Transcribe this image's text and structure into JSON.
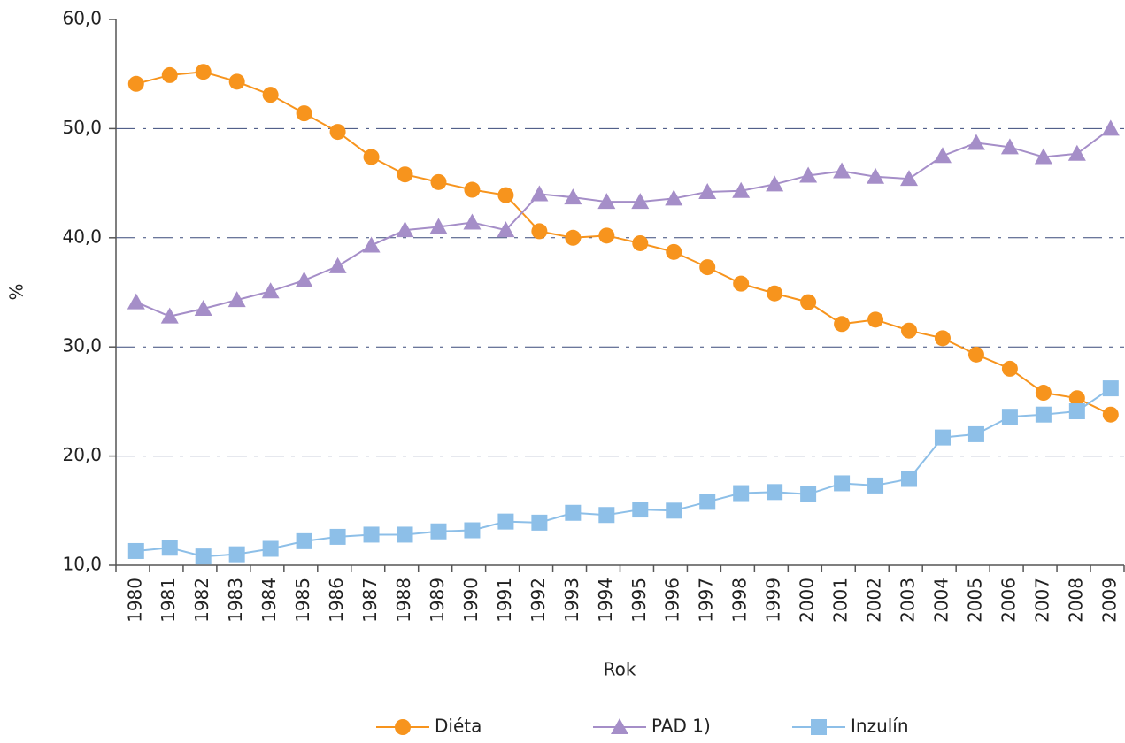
{
  "chart_data": {
    "type": "line",
    "x_label": "Rok",
    "y_label": "%",
    "categories": [
      "1980",
      "1981",
      "1982",
      "1983",
      "1984",
      "1985",
      "1986",
      "1987",
      "1988",
      "1989",
      "1990",
      "1991",
      "1992",
      "1993",
      "1994",
      "1995",
      "1996",
      "1997",
      "1998",
      "1999",
      "2000",
      "2001",
      "2002",
      "2003",
      "2004",
      "2005",
      "2006",
      "2007",
      "2008",
      "2009"
    ],
    "series": [
      {
        "name": "Diéta",
        "color": "#f7941d",
        "marker": "circle",
        "values": [
          54.1,
          54.9,
          55.2,
          54.3,
          53.1,
          51.4,
          49.7,
          47.4,
          45.8,
          45.1,
          44.4,
          43.9,
          40.6,
          40.0,
          40.2,
          39.5,
          38.7,
          37.3,
          35.8,
          34.9,
          34.1,
          32.1,
          32.5,
          31.5,
          30.8,
          29.3,
          28.0,
          25.8,
          25.3,
          23.8
        ]
      },
      {
        "name": "PAD 1)",
        "color": "#a58ec8",
        "marker": "triangle",
        "values": [
          34.1,
          32.8,
          33.5,
          34.3,
          35.1,
          36.1,
          37.4,
          39.3,
          40.7,
          41.0,
          41.4,
          40.7,
          44.0,
          43.7,
          43.3,
          43.3,
          43.6,
          44.2,
          44.3,
          44.9,
          45.7,
          46.1,
          45.6,
          45.4,
          47.5,
          48.7,
          48.3,
          47.4,
          47.7,
          50.0
        ]
      },
      {
        "name": "Inzulín",
        "color": "#8dbfe8",
        "marker": "square",
        "values": [
          11.3,
          11.6,
          10.8,
          11.0,
          11.5,
          12.2,
          12.6,
          12.8,
          12.8,
          13.1,
          13.2,
          14.0,
          13.9,
          14.8,
          14.6,
          15.1,
          15.0,
          15.8,
          16.6,
          16.7,
          16.5,
          17.5,
          17.3,
          17.9,
          21.7,
          22.0,
          23.6,
          23.8,
          24.1,
          26.2
        ]
      }
    ],
    "ylim": [
      10,
      60
    ],
    "yticks": [
      {
        "value": 10,
        "label": "10,0"
      },
      {
        "value": 20,
        "label": "20,0"
      },
      {
        "value": 30,
        "label": "30,0"
      },
      {
        "value": 40,
        "label": "40,0"
      },
      {
        "value": 50,
        "label": "50,0"
      },
      {
        "value": 60,
        "label": "60,0"
      }
    ],
    "grid": true,
    "legend": "bottom"
  }
}
